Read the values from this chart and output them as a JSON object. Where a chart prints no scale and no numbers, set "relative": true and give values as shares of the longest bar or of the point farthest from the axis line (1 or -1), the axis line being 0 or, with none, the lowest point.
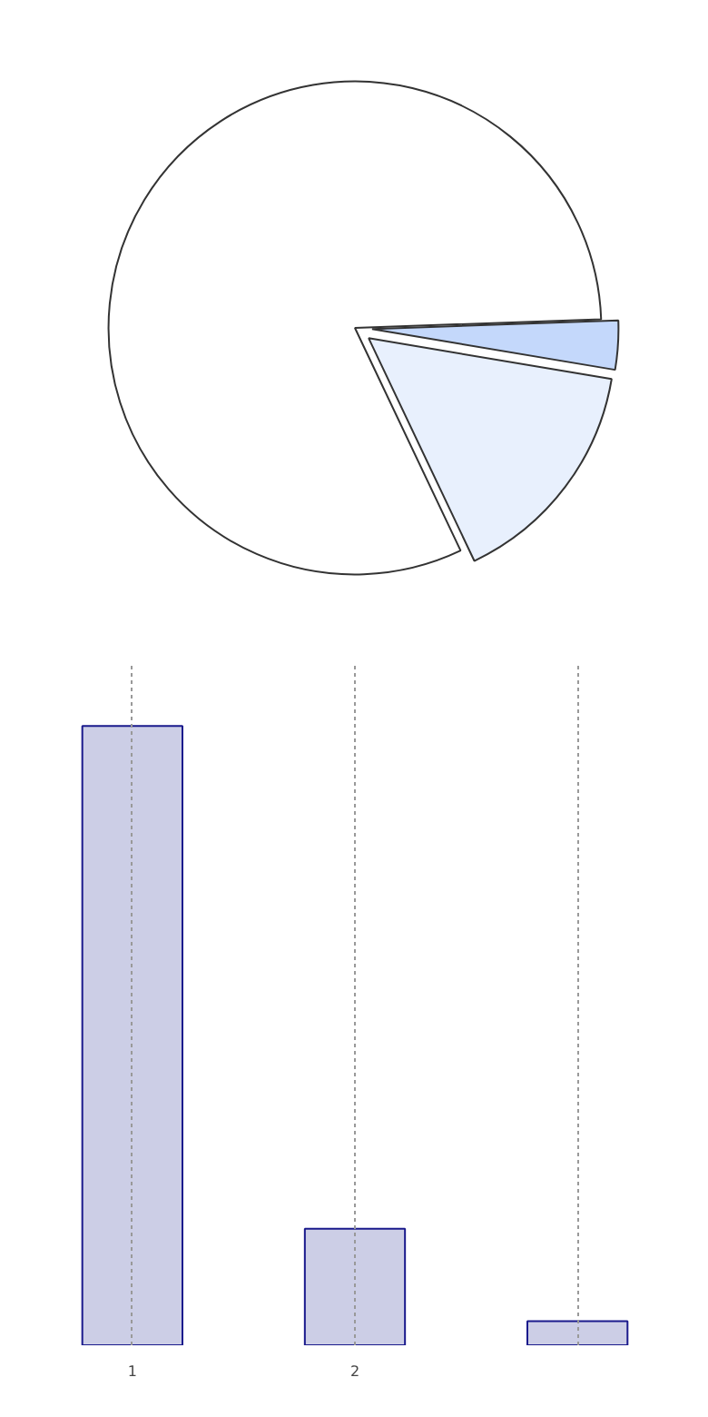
{
  "chart_data": [
    {
      "type": "pie",
      "categories": [
        null,
        null,
        null
      ],
      "values": [
        81.5,
        15.3,
        3.2
      ],
      "colors": [
        "#ffffff",
        "#e8f0fd",
        "#c4d8fb"
      ]
    },
    {
      "type": "bar",
      "categories": [
        "1",
        "2",
        null
      ],
      "values": [
        1,
        0.188,
        0.039
      ],
      "relative": true,
      "color": "#ccceE6",
      "grid": "x"
    }
  ]
}
